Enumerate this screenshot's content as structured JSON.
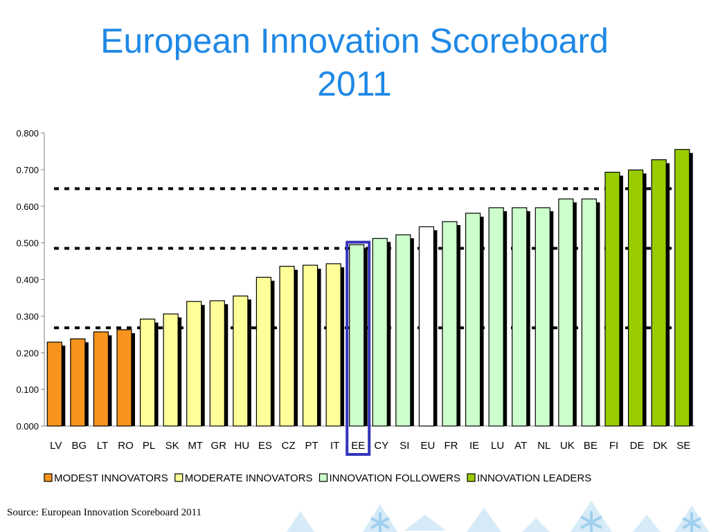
{
  "slide": {
    "title_line1": "European Innovation Scoreboard",
    "title_line2": "2011",
    "source": "Source: European Innovation Scoreboard 2011"
  },
  "colors": {
    "title": "#1e88e5",
    "modest": "#f7941d",
    "moderate": "#ffff99",
    "followers": "#ccffcc",
    "leaders": "#99cc00",
    "eu": "#ffffff",
    "highlight_box": "#3333bb"
  },
  "chart_data": {
    "type": "bar",
    "title": "",
    "xlabel": "",
    "ylabel": "",
    "ylim": [
      0,
      0.8
    ],
    "yticks": [
      "0.000",
      "0.100",
      "0.200",
      "0.300",
      "0.400",
      "0.500",
      "0.600",
      "0.700",
      "0.800"
    ],
    "categories": [
      "LV",
      "BG",
      "LT",
      "RO",
      "PL",
      "SK",
      "MT",
      "GR",
      "HU",
      "ES",
      "CZ",
      "PT",
      "IT",
      "EE",
      "CY",
      "SI",
      "EU",
      "FR",
      "IE",
      "LU",
      "AT",
      "NL",
      "UK",
      "BE",
      "FI",
      "DE",
      "DK",
      "SE"
    ],
    "values": [
      0.229,
      0.238,
      0.257,
      0.263,
      0.292,
      0.306,
      0.34,
      0.342,
      0.355,
      0.406,
      0.436,
      0.439,
      0.443,
      0.495,
      0.512,
      0.522,
      0.544,
      0.558,
      0.581,
      0.596,
      0.596,
      0.596,
      0.62,
      0.62,
      0.693,
      0.699,
      0.727,
      0.755
    ],
    "groups": [
      "modest",
      "modest",
      "modest",
      "modest",
      "moderate",
      "moderate",
      "moderate",
      "moderate",
      "moderate",
      "moderate",
      "moderate",
      "moderate",
      "moderate",
      "followers",
      "followers",
      "followers",
      "eu",
      "followers",
      "followers",
      "followers",
      "followers",
      "followers",
      "followers",
      "followers",
      "leaders",
      "leaders",
      "leaders",
      "leaders"
    ],
    "thresholds": [
      0.268,
      0.485,
      0.648
    ],
    "highlighted": "EE",
    "legend": [
      {
        "key": "modest",
        "label": "MODEST INNOVATORS"
      },
      {
        "key": "moderate",
        "label": "MODERATE INNOVATORS"
      },
      {
        "key": "followers",
        "label": "INNOVATION FOLLOWERS"
      },
      {
        "key": "leaders",
        "label": "INNOVATION LEADERS"
      }
    ],
    "legend_position": "bottom",
    "grid": false
  }
}
